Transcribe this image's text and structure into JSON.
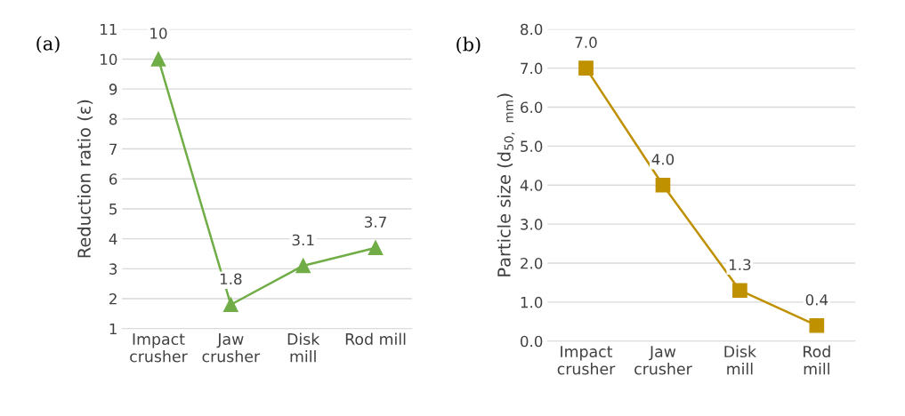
{
  "chart_data": [
    {
      "type": "line",
      "ylabel": "Reduction ratio (ε)",
      "annotations": [
        "(a)"
      ],
      "categories": [
        "Impact\ncrusher",
        "Jaw\ncrusher",
        "Disk\nmill",
        "Rod mill"
      ],
      "series": [
        {
          "color": "#70ad47",
          "values": [
            10,
            1.8,
            3.1,
            3.7
          ],
          "value_labels": [
            "10",
            "1.8",
            "3.1",
            "3.7"
          ]
        }
      ],
      "ylim": [
        1,
        11
      ],
      "yticks": [
        1,
        2,
        3,
        4,
        5,
        6,
        7,
        8,
        9,
        10,
        11
      ],
      "grid": "y",
      "marker": "triangle"
    },
    {
      "type": "line",
      "ylabel": "Particle size (d$_{50, mm}$)",
      "annotations": [
        "(b)"
      ],
      "categories": [
        "Impact\ncrusher",
        "Jaw\ncrusher",
        "Disk\nmill",
        "Rod\nmill"
      ],
      "series": [
        {
          "color": "#bf9000",
          "values": [
            7.0,
            4.0,
            1.3,
            0.4
          ],
          "value_labels": [
            "7.0",
            "4.0",
            "1.3",
            "0.4"
          ]
        }
      ],
      "ylim": [
        0,
        8
      ],
      "yticks": [
        {
          "value": 0,
          "label": "0.0"
        },
        {
          "value": 1,
          "label": "1.0"
        },
        {
          "value": 2,
          "label": "2.0"
        },
        {
          "value": 3,
          "label": "3.0"
        },
        {
          "value": 4,
          "label": "4.0"
        },
        {
          "value": 5,
          "label": "5.0"
        },
        {
          "value": 6,
          "label": "6.0"
        },
        {
          "value": 7,
          "label": "7.0"
        },
        {
          "value": 8,
          "label": "8.0"
        }
      ],
      "grid": "y",
      "marker": "square"
    }
  ]
}
